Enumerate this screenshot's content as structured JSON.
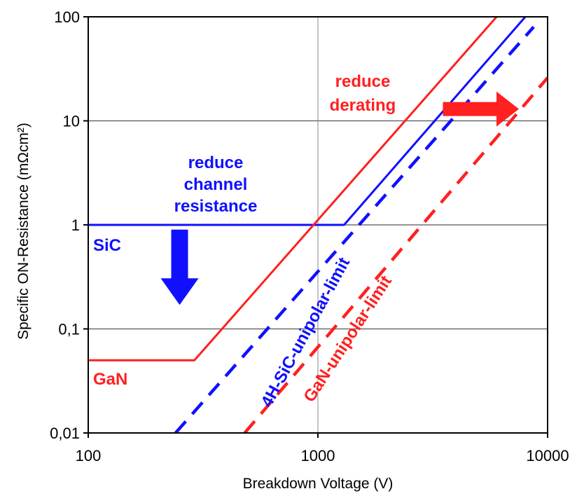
{
  "chart_data": {
    "type": "line",
    "xscale": "log",
    "yscale": "log",
    "xlim": [
      100,
      10000
    ],
    "ylim": [
      0.01,
      100
    ],
    "xlabel": "Breakdown Voltage (V)",
    "ylabel": "Specific ON-Resistance (mΩcm²)",
    "x_ticks": [
      {
        "value": 100,
        "label": "100"
      },
      {
        "value": 1000,
        "label": "1000"
      },
      {
        "value": 10000,
        "label": "10000"
      }
    ],
    "y_ticks": [
      {
        "value": 0.01,
        "label": "0,01"
      },
      {
        "value": 0.1,
        "label": "0,1"
      },
      {
        "value": 1,
        "label": "1"
      },
      {
        "value": 10,
        "label": "10"
      },
      {
        "value": 100,
        "label": "100"
      }
    ],
    "grid": {
      "horizontal": true,
      "vertical_at": [
        1000
      ]
    },
    "series": [
      {
        "name": "SiC",
        "color": "#1010ff",
        "style": "solid",
        "x": [
          100,
          1300,
          8000
        ],
        "y": [
          1,
          1,
          100
        ]
      },
      {
        "name": "GaN",
        "color": "#ff2020",
        "style": "solid",
        "x": [
          100,
          290,
          6000
        ],
        "y": [
          0.05,
          0.05,
          100
        ]
      },
      {
        "name": "4H-SiC-unipolar-limit",
        "color": "#1010ff",
        "style": "dashed",
        "x": [
          240,
          8700
        ],
        "y": [
          0.01,
          80
        ]
      },
      {
        "name": "GaN-unipolar-limit",
        "color": "#ff2020",
        "style": "dashed",
        "x": [
          480,
          10000
        ],
        "y": [
          0.01,
          26
        ]
      }
    ],
    "annotations": {
      "sic_label": "SiC",
      "gan_label": "GaN",
      "sic_limit_label": "4H-SiC-unipolar-limit",
      "gan_limit_label": "GaN-unipolar-limit",
      "reduce_channel": [
        "reduce",
        "channel",
        "resistance"
      ],
      "reduce_derating": [
        "reduce",
        "derating"
      ]
    },
    "arrows": [
      {
        "meaning": "reduce channel resistance",
        "direction": "down",
        "color": "#1010ff",
        "at_x": 250,
        "from_y": 0.9,
        "to_y": 0.17
      },
      {
        "meaning": "reduce derating",
        "direction": "right",
        "color": "#ff2020",
        "at_y": 13,
        "from_x": 3500,
        "to_x": 7500
      }
    ]
  }
}
